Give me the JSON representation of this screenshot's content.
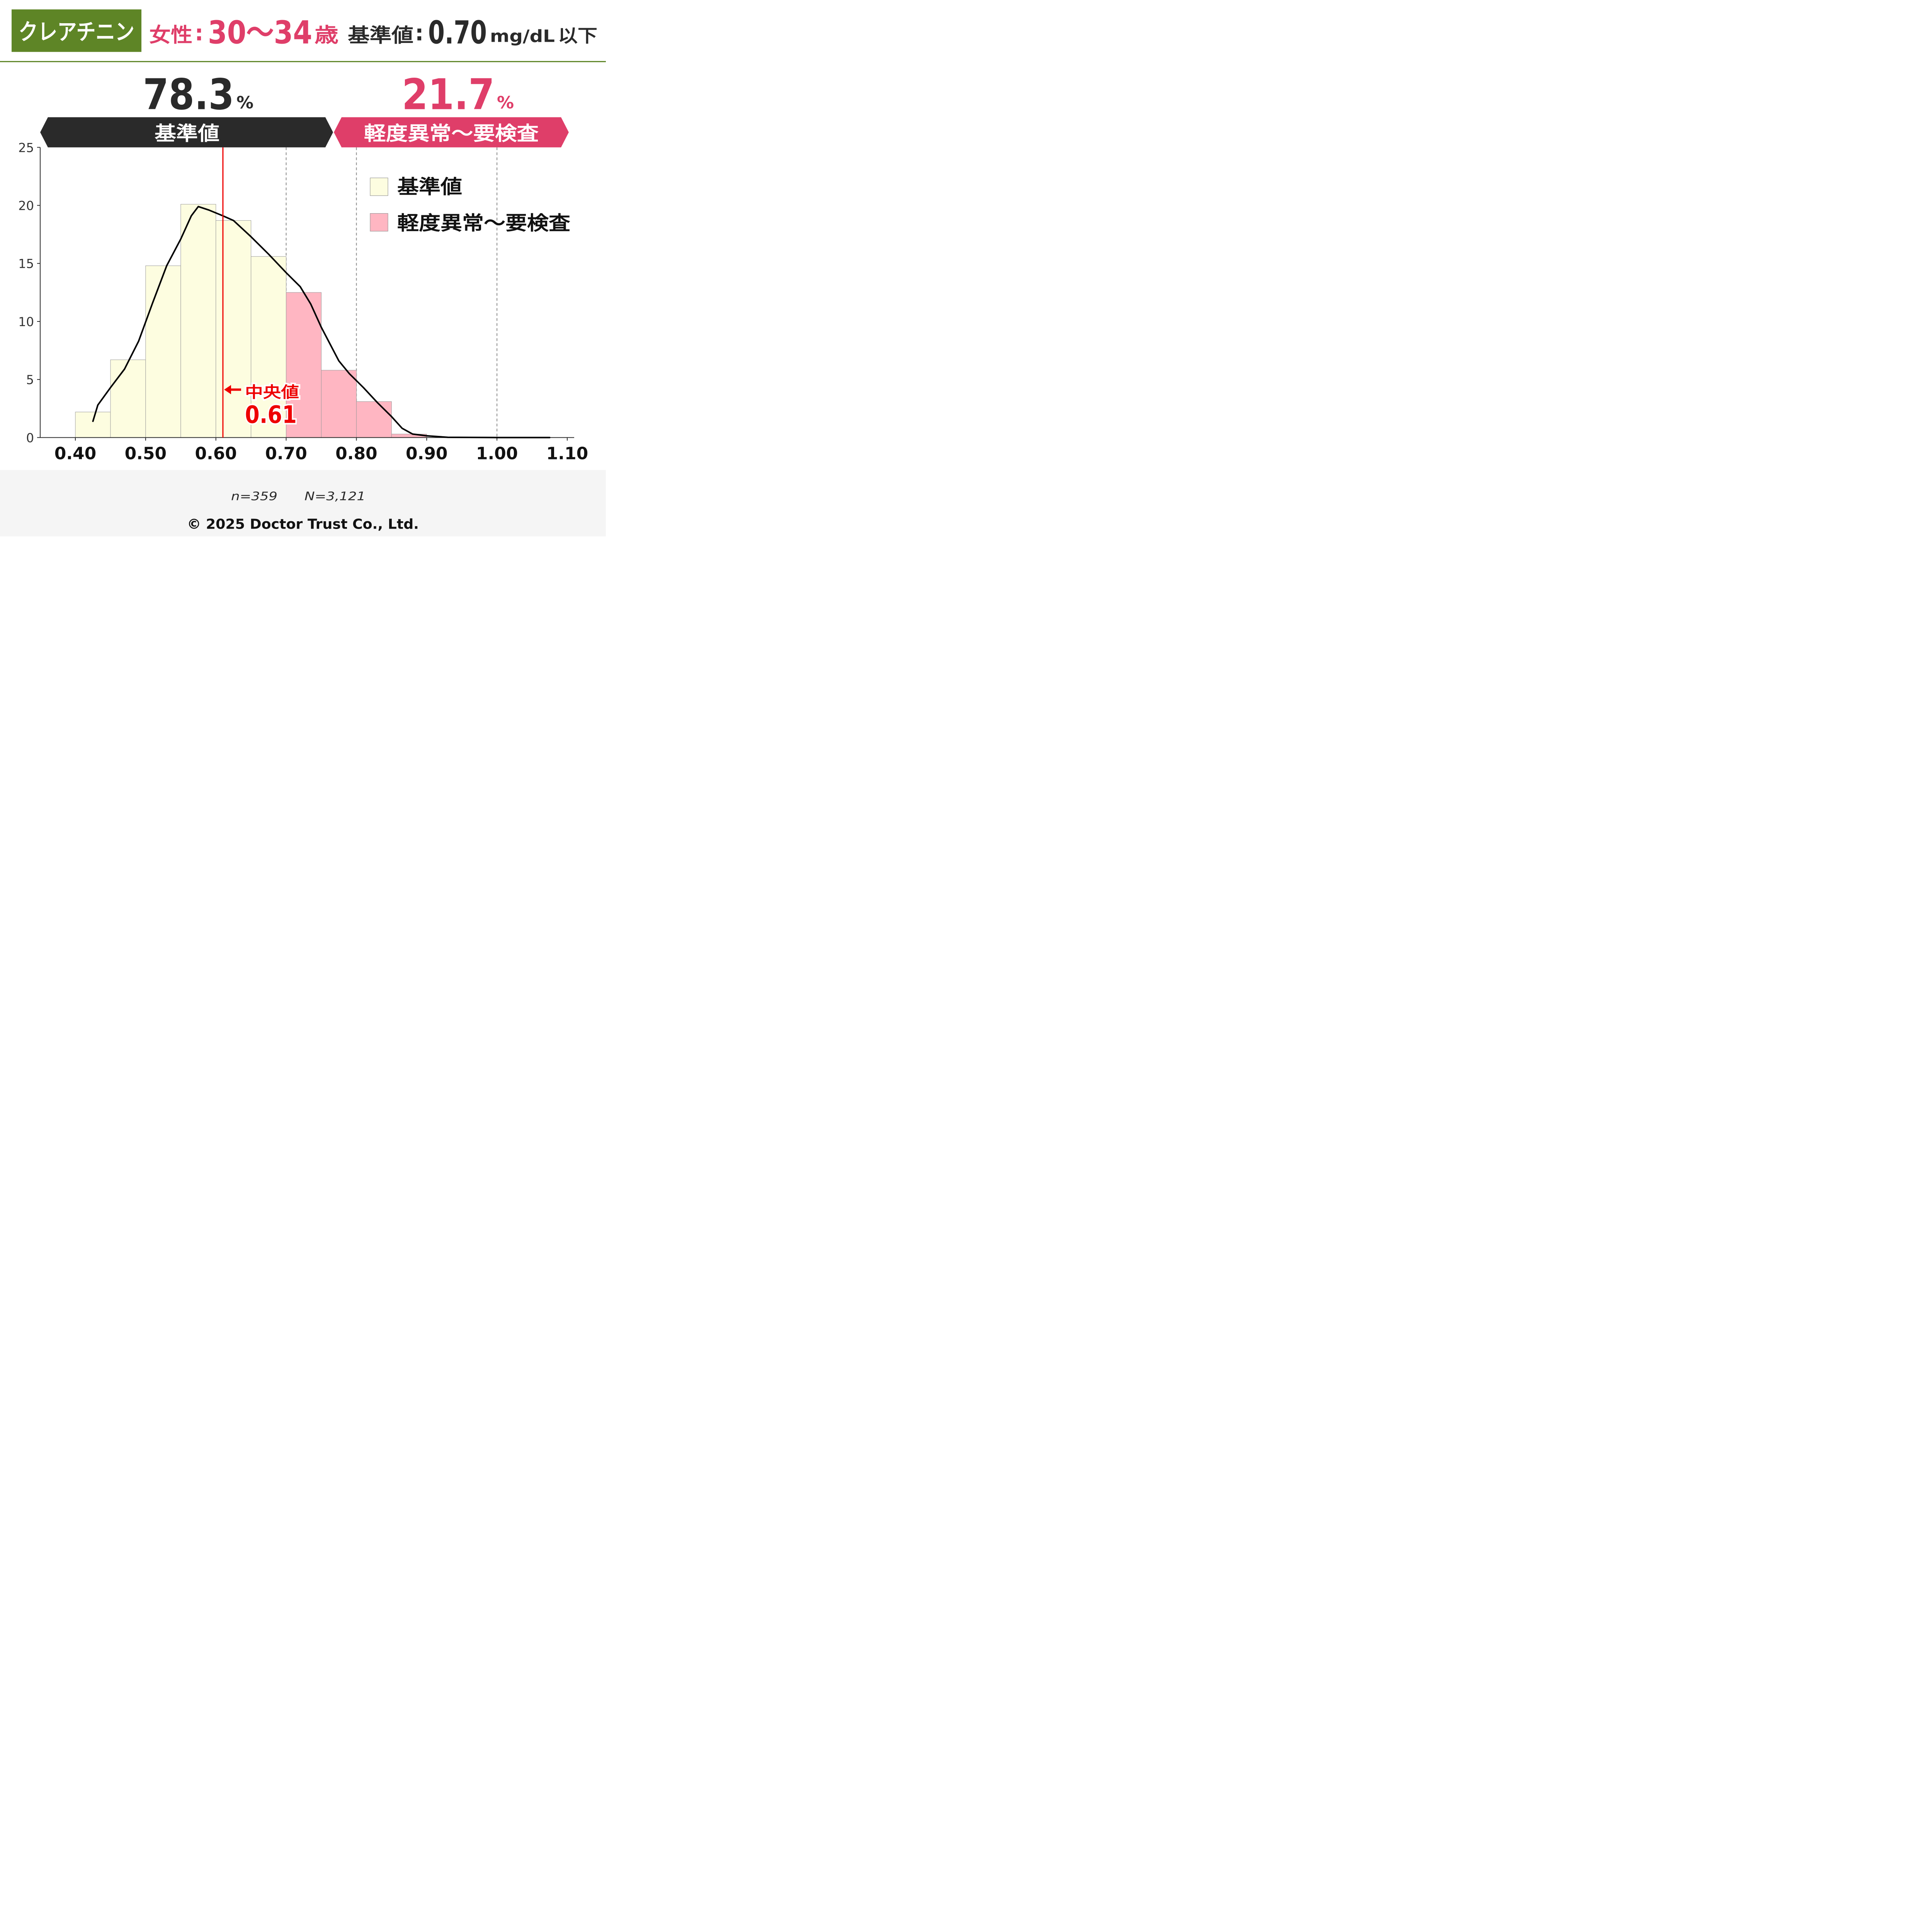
{
  "header": {
    "test_name": "クレアチニン",
    "sex": "女性",
    "age_range": "30～34",
    "age_unit": "歳",
    "reference_label": "基準値",
    "reference_value": "0.70",
    "reference_unit": "mg/dL",
    "reference_suffix": "以下"
  },
  "summary": {
    "normal_percent": "78.3",
    "abnormal_percent": "21.7",
    "percent_sign": "%",
    "normal_label": "基準値",
    "abnormal_label": "軽度異常～要検査"
  },
  "median": {
    "label": "中央値",
    "value": "0.61"
  },
  "legend": {
    "normal": "基準値",
    "abnormal": "軽度異常～要検査"
  },
  "footer": {
    "n": "n=359",
    "N": "N=3,121",
    "copyright": "© 2025 Doctor Trust Co., Ltd."
  },
  "colors": {
    "brand_green": "#5e8526",
    "accent_pink": "#df3e69",
    "dark": "#2a2a2a",
    "normal_fill": "#fdfde0",
    "abnormal_fill": "#ffb6c2",
    "median_red": "#ee0000",
    "footer_bg": "#f5f5f5"
  },
  "chart_data": {
    "type": "bar",
    "subtype": "histogram",
    "bins": [
      {
        "start": 0.4,
        "end": 0.45,
        "value": 2.2,
        "group": "normal"
      },
      {
        "start": 0.45,
        "end": 0.5,
        "value": 6.7,
        "group": "normal"
      },
      {
        "start": 0.5,
        "end": 0.55,
        "value": 14.8,
        "group": "normal"
      },
      {
        "start": 0.55,
        "end": 0.6,
        "value": 20.1,
        "group": "normal"
      },
      {
        "start": 0.6,
        "end": 0.65,
        "value": 18.7,
        "group": "normal"
      },
      {
        "start": 0.65,
        "end": 0.7,
        "value": 15.6,
        "group": "normal"
      },
      {
        "start": 0.7,
        "end": 0.75,
        "value": 12.5,
        "group": "abnormal"
      },
      {
        "start": 0.75,
        "end": 0.8,
        "value": 5.8,
        "group": "abnormal"
      },
      {
        "start": 0.8,
        "end": 0.85,
        "value": 3.1,
        "group": "abnormal"
      },
      {
        "start": 0.85,
        "end": 0.9,
        "value": 0.3,
        "group": "abnormal"
      }
    ],
    "density_curve": [
      [
        0.425,
        1.4
      ],
      [
        0.432,
        2.8
      ],
      [
        0.45,
        4.3
      ],
      [
        0.47,
        5.9
      ],
      [
        0.49,
        8.3
      ],
      [
        0.51,
        11.6
      ],
      [
        0.53,
        14.8
      ],
      [
        0.55,
        17.1
      ],
      [
        0.565,
        19.1
      ],
      [
        0.575,
        19.9
      ],
      [
        0.59,
        19.6
      ],
      [
        0.61,
        19.1
      ],
      [
        0.625,
        18.7
      ],
      [
        0.65,
        17.3
      ],
      [
        0.675,
        15.8
      ],
      [
        0.7,
        14.2
      ],
      [
        0.72,
        13.0
      ],
      [
        0.735,
        11.5
      ],
      [
        0.75,
        9.5
      ],
      [
        0.775,
        6.6
      ],
      [
        0.79,
        5.5
      ],
      [
        0.81,
        4.3
      ],
      [
        0.83,
        3.0
      ],
      [
        0.85,
        1.8
      ],
      [
        0.865,
        0.8
      ],
      [
        0.88,
        0.3
      ],
      [
        0.9,
        0.15
      ],
      [
        0.93,
        0.02
      ],
      [
        1.0,
        0.0
      ],
      [
        1.075,
        0.0
      ]
    ],
    "xticks": [
      "0.40",
      "0.50",
      "0.60",
      "0.70",
      "0.80",
      "0.90",
      "1.00",
      "1.10"
    ],
    "yticks": [
      "0",
      "5",
      "10",
      "15",
      "20",
      "25"
    ],
    "xlim": [
      0.35,
      1.11
    ],
    "ylim": [
      0,
      25
    ],
    "dashed_lines": [
      0.7,
      0.8,
      1.0
    ],
    "median_value": 0.61,
    "xlabel": "",
    "ylabel": "",
    "legend_position": "top-right",
    "grid": false
  }
}
